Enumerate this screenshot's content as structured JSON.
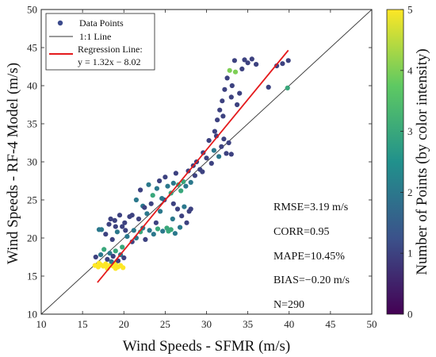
{
  "chart_data": {
    "type": "scatter",
    "xlabel": "Wind Speeds - SFMR (m/s)",
    "ylabel": "Wind Speeds - RF-4 Model (m/s)",
    "xlim": [
      10,
      50
    ],
    "ylim": [
      10,
      50
    ],
    "xticks": [
      "10",
      "15",
      "20",
      "25",
      "30",
      "35",
      "40",
      "45",
      "50"
    ],
    "yticks": [
      "10",
      "15",
      "20",
      "25",
      "30",
      "35",
      "40",
      "45",
      "50"
    ],
    "grid": false,
    "legend": {
      "placement": "top-left",
      "entries": [
        "Data Points",
        "1:1 Line",
        "Regression Line:",
        "y = 1.32x − 8.02"
      ]
    },
    "colorbar": {
      "label": "Number of Points (by color intensity)",
      "range": [
        0,
        5
      ],
      "ticks": [
        "0",
        "1",
        "2",
        "3",
        "4",
        "5"
      ],
      "colormap": [
        "#440154",
        "#3b528b",
        "#21918c",
        "#5ec962",
        "#fde725"
      ]
    },
    "stats": [
      "RMSE=3.19 m/s",
      "CORR=0.95",
      "MAPE=10.45%",
      "BIAS=−0.20 m/s",
      "N=290"
    ],
    "reference_line": {
      "name": "1:1 Line",
      "x": [
        10,
        50
      ],
      "y": [
        10,
        50
      ],
      "color": "#333333"
    },
    "regression_line": {
      "name": "Regression Line",
      "slope": 1.32,
      "intercept": -8.02,
      "x": [
        16.8,
        39.9
      ],
      "color": "#e41a1c"
    },
    "points": [
      [
        16.5,
        16.4,
        5
      ],
      [
        16.9,
        16.2,
        5
      ],
      [
        17.2,
        16.5,
        5
      ],
      [
        17.5,
        16.3,
        5
      ],
      [
        17.8,
        16.6,
        5
      ],
      [
        18.1,
        16.2,
        5
      ],
      [
        18.4,
        16.5,
        5
      ],
      [
        18.7,
        16.3,
        5
      ],
      [
        19.0,
        16.6,
        5
      ],
      [
        19.3,
        16.2,
        5
      ],
      [
        19.6,
        16.4,
        5
      ],
      [
        19.9,
        16.1,
        5
      ],
      [
        17.0,
        16.7,
        5
      ],
      [
        18.0,
        16.0,
        5
      ],
      [
        19.0,
        16.0,
        5
      ],
      [
        16.6,
        17.5,
        1
      ],
      [
        17.2,
        17.8,
        2
      ],
      [
        17.6,
        18.5,
        3
      ],
      [
        18.0,
        17.2,
        1
      ],
      [
        18.3,
        18.0,
        2
      ],
      [
        18.7,
        17.6,
        1
      ],
      [
        19.0,
        18.3,
        3
      ],
      [
        19.3,
        17.0,
        1
      ],
      [
        19.6,
        17.8,
        2
      ],
      [
        20.0,
        17.4,
        1
      ],
      [
        18.5,
        16.9,
        2
      ],
      [
        19.8,
        18.8,
        3
      ],
      [
        17.0,
        21.1,
        2
      ],
      [
        17.3,
        21.1,
        2
      ],
      [
        17.8,
        20.5,
        1
      ],
      [
        18.2,
        21.8,
        1
      ],
      [
        18.6,
        19.8,
        1
      ],
      [
        18.9,
        22.3,
        1
      ],
      [
        19.2,
        20.8,
        2
      ],
      [
        19.5,
        23.0,
        1
      ],
      [
        19.8,
        21.5,
        1
      ],
      [
        20.1,
        22.0,
        1
      ],
      [
        20.4,
        20.2,
        2
      ],
      [
        20.7,
        22.8,
        1
      ],
      [
        21.0,
        19.5,
        1
      ],
      [
        21.2,
        21.0,
        2
      ],
      [
        21.5,
        20.0,
        2
      ],
      [
        21.8,
        22.5,
        1
      ],
      [
        22.0,
        20.8,
        3
      ],
      [
        22.3,
        21.3,
        2
      ],
      [
        22.6,
        19.8,
        1
      ],
      [
        22.8,
        23.2,
        2
      ],
      [
        23.1,
        21.0,
        2
      ],
      [
        23.3,
        24.5,
        1
      ],
      [
        23.6,
        20.5,
        2
      ],
      [
        23.9,
        22.0,
        1
      ],
      [
        24.1,
        21.2,
        3
      ],
      [
        24.4,
        23.5,
        2
      ],
      [
        24.7,
        20.9,
        2
      ],
      [
        24.9,
        25.0,
        1
      ],
      [
        25.2,
        21.3,
        3
      ],
      [
        25.4,
        20.9,
        3
      ],
      [
        25.7,
        21.1,
        3
      ],
      [
        25.9,
        22.5,
        2
      ],
      [
        26.2,
        20.6,
        2
      ],
      [
        26.5,
        23.8,
        1
      ],
      [
        26.8,
        21.4,
        2
      ],
      [
        27.0,
        22.9,
        1
      ],
      [
        27.3,
        24.1,
        2
      ],
      [
        27.6,
        22.0,
        1
      ],
      [
        27.9,
        23.5,
        1
      ],
      [
        28.1,
        23.8,
        1
      ],
      [
        20.2,
        21.0,
        1
      ],
      [
        19.0,
        21.5,
        1
      ],
      [
        18.4,
        22.5,
        1
      ],
      [
        21.0,
        23.0,
        1
      ],
      [
        22.3,
        24.2,
        2
      ],
      [
        21.5,
        25.0,
        2
      ],
      [
        22.0,
        26.3,
        1
      ],
      [
        22.5,
        24.0,
        1
      ],
      [
        23.0,
        27.0,
        2
      ],
      [
        23.5,
        25.6,
        3
      ],
      [
        24.0,
        26.5,
        2
      ],
      [
        24.3,
        27.5,
        1
      ],
      [
        24.6,
        25.2,
        2
      ],
      [
        25.0,
        28.0,
        1
      ],
      [
        25.3,
        26.8,
        2
      ],
      [
        25.7,
        25.9,
        3
      ],
      [
        26.0,
        27.2,
        2
      ],
      [
        26.3,
        28.5,
        1
      ],
      [
        26.6,
        27.0,
        3
      ],
      [
        26.9,
        26.2,
        3
      ],
      [
        27.2,
        27.4,
        3
      ],
      [
        27.5,
        26.8,
        2
      ],
      [
        27.8,
        28.8,
        1
      ],
      [
        28.1,
        27.3,
        2
      ],
      [
        28.4,
        29.5,
        1
      ],
      [
        28.8,
        30.0,
        1
      ],
      [
        29.2,
        29.0,
        1
      ],
      [
        29.6,
        31.2,
        1
      ],
      [
        30.0,
        30.5,
        1
      ],
      [
        30.3,
        32.8,
        1
      ],
      [
        30.6,
        29.8,
        1
      ],
      [
        30.9,
        31.5,
        2
      ],
      [
        31.2,
        33.4,
        1
      ],
      [
        31.5,
        30.7,
        2
      ],
      [
        31.8,
        32.0,
        1
      ],
      [
        32.1,
        33.0,
        1
      ],
      [
        32.4,
        31.1,
        1
      ],
      [
        32.7,
        32.5,
        1
      ],
      [
        33.0,
        31.0,
        1
      ],
      [
        29.5,
        28.7,
        1
      ],
      [
        28.6,
        28.2,
        1
      ],
      [
        26.0,
        24.5,
        1
      ],
      [
        31.0,
        34.0,
        1
      ],
      [
        31.3,
        35.5,
        1
      ],
      [
        31.6,
        36.8,
        1
      ],
      [
        31.9,
        38.0,
        1
      ],
      [
        32.2,
        39.5,
        1
      ],
      [
        32.5,
        41.0,
        1
      ],
      [
        32.8,
        42.0,
        4
      ],
      [
        33.1,
        40.0,
        1
      ],
      [
        33.4,
        43.3,
        1
      ],
      [
        33.7,
        37.5,
        1
      ],
      [
        34.0,
        39.0,
        1
      ],
      [
        34.3,
        42.2,
        1
      ],
      [
        34.6,
        43.4,
        1
      ],
      [
        35.0,
        43.0,
        1
      ],
      [
        35.5,
        43.5,
        1
      ],
      [
        36.0,
        42.8,
        1
      ],
      [
        32.0,
        36.0,
        1
      ],
      [
        33.0,
        38.5,
        1
      ],
      [
        33.5,
        41.8,
        4
      ],
      [
        37.5,
        39.8,
        1
      ],
      [
        38.5,
        42.6,
        1
      ],
      [
        39.2,
        42.9,
        1
      ],
      [
        39.8,
        39.7,
        3
      ],
      [
        39.9,
        43.3,
        1
      ]
    ]
  }
}
